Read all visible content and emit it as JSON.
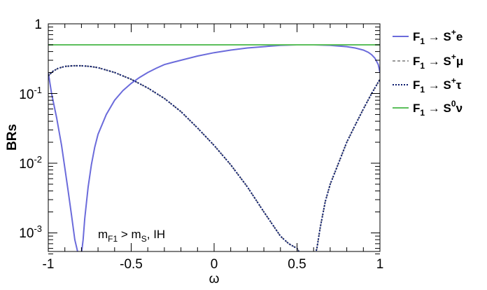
{
  "chart_data": {
    "type": "line",
    "xlabel": "ω",
    "ylabel": "BRs",
    "xlim": [
      -1,
      1
    ],
    "ylim": [
      0.0005,
      1
    ],
    "yscale": "log",
    "grid": false,
    "legend_placement": "right",
    "x_ticks": [
      "-1",
      "-0.5",
      "0",
      "0.5",
      "1"
    ],
    "annotation": {
      "m": "m",
      "sub1": "F1",
      "gt": " > m",
      "sub2": "S",
      "tail": ", IH"
    },
    "series": [
      {
        "name_main": "F",
        "name_sub": "1",
        "name_arrow": " → S",
        "name_sup": "+",
        "name_tail": "e",
        "color": "#6b6bdb",
        "style": "solid",
        "x": [
          -1,
          -0.98,
          -0.95,
          -0.92,
          -0.9,
          -0.88,
          -0.86,
          -0.84,
          -0.82,
          -0.81,
          -0.8,
          -0.79,
          -0.78,
          -0.76,
          -0.74,
          -0.72,
          -0.7,
          -0.65,
          -0.6,
          -0.55,
          -0.5,
          -0.45,
          -0.4,
          -0.35,
          -0.3,
          -0.25,
          -0.2,
          -0.1,
          0,
          0.1,
          0.2,
          0.3,
          0.4,
          0.5,
          0.55,
          0.6,
          0.7,
          0.8,
          0.85,
          0.9,
          0.93,
          0.95,
          0.97,
          0.99,
          1
        ],
        "y": [
          0.2,
          0.1,
          0.045,
          0.018,
          0.0085,
          0.004,
          0.0018,
          0.0008,
          0.0005,
          0.0005,
          0.0005,
          0.0008,
          0.0016,
          0.0045,
          0.0095,
          0.017,
          0.026,
          0.05,
          0.08,
          0.11,
          0.14,
          0.17,
          0.2,
          0.23,
          0.26,
          0.28,
          0.3,
          0.345,
          0.385,
          0.42,
          0.45,
          0.47,
          0.49,
          0.5,
          0.5,
          0.5,
          0.49,
          0.47,
          0.45,
          0.42,
          0.39,
          0.36,
          0.32,
          0.26,
          0.2
        ]
      },
      {
        "name_main": "F",
        "name_sub": "1",
        "name_arrow": " → S",
        "name_sup": "+",
        "name_tail": "μ",
        "color": "#999999",
        "style": "dashed",
        "x": [
          -1,
          -0.97,
          -0.94,
          -0.9,
          -0.85,
          -0.8,
          -0.75,
          -0.7,
          -0.6,
          -0.5,
          -0.4,
          -0.3,
          -0.2,
          -0.1,
          0,
          0.1,
          0.2,
          0.3,
          0.4,
          0.45,
          0.5,
          0.52,
          0.54,
          0.55,
          0.57,
          0.6,
          0.61,
          0.62,
          0.64,
          0.67,
          0.7,
          0.75,
          0.8,
          0.85,
          0.9,
          0.95,
          1
        ],
        "y": [
          0.18,
          0.21,
          0.23,
          0.245,
          0.25,
          0.25,
          0.245,
          0.235,
          0.2,
          0.16,
          0.12,
          0.085,
          0.055,
          0.032,
          0.018,
          0.0095,
          0.0046,
          0.002,
          0.0009,
          0.0007,
          0.0006,
          0.0005,
          0.0005,
          0.0005,
          0.0005,
          0.0005,
          0.0005,
          0.0006,
          0.0012,
          0.0028,
          0.005,
          0.01,
          0.02,
          0.035,
          0.06,
          0.1,
          0.16
        ]
      },
      {
        "name_main": "F",
        "name_sub": "1",
        "name_arrow": " → S",
        "name_sup": "+",
        "name_tail": "τ",
        "color": "#0a1a6e",
        "style": "dotted",
        "x": [
          -1,
          -0.97,
          -0.94,
          -0.9,
          -0.85,
          -0.8,
          -0.75,
          -0.7,
          -0.6,
          -0.5,
          -0.4,
          -0.3,
          -0.2,
          -0.1,
          0,
          0.1,
          0.2,
          0.3,
          0.4,
          0.45,
          0.5,
          0.52,
          0.54,
          0.55,
          0.57,
          0.6,
          0.61,
          0.62,
          0.64,
          0.67,
          0.7,
          0.75,
          0.8,
          0.85,
          0.9,
          0.95,
          1
        ],
        "y": [
          0.18,
          0.21,
          0.23,
          0.245,
          0.25,
          0.25,
          0.245,
          0.235,
          0.2,
          0.16,
          0.12,
          0.085,
          0.055,
          0.032,
          0.018,
          0.0095,
          0.0046,
          0.002,
          0.0009,
          0.0007,
          0.0006,
          0.0005,
          0.0005,
          0.0005,
          0.0005,
          0.0005,
          0.0005,
          0.0006,
          0.0012,
          0.0028,
          0.005,
          0.01,
          0.02,
          0.035,
          0.06,
          0.1,
          0.16
        ]
      },
      {
        "name_main": "F",
        "name_sub": "1",
        "name_arrow": " → S",
        "name_sup": "0",
        "name_tail": "ν",
        "color": "#5cbf5c",
        "style": "solid",
        "x": [
          -1,
          1
        ],
        "y": [
          0.5,
          0.5
        ]
      }
    ]
  }
}
